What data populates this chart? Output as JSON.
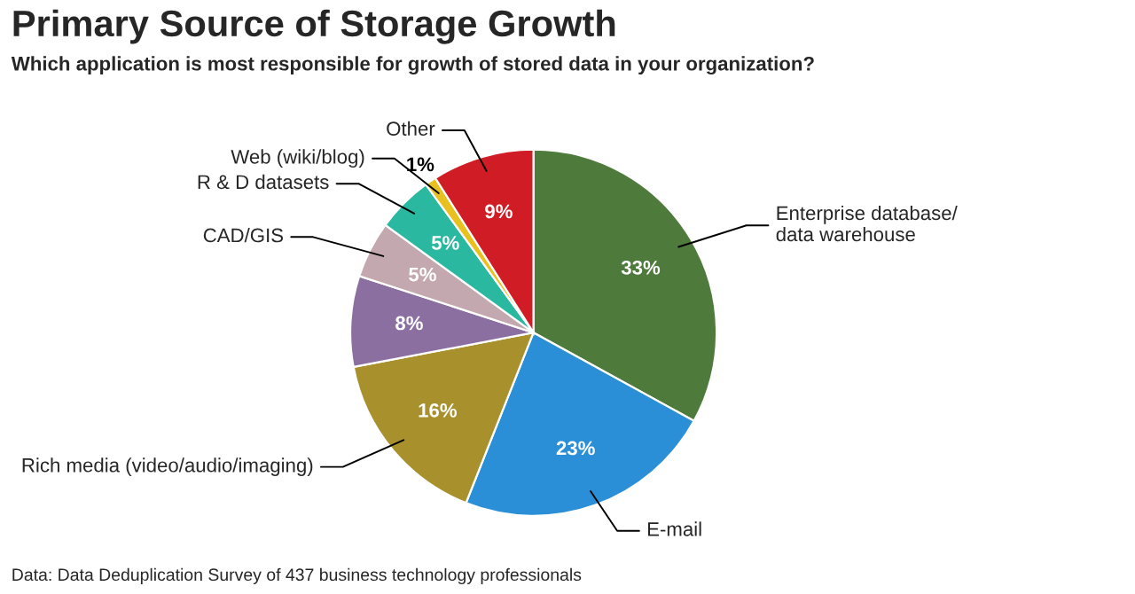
{
  "chart_data": {
    "type": "pie",
    "title": "Primary Source of Storage Growth",
    "subtitle": "Which application is most responsible for growth of stored data in your organization?",
    "categories": [
      "Enterprise database/\ndata warehouse",
      "E-mail",
      "Rich media (video/audio/imaging)",
      null,
      "CAD/GIS",
      "R & D datasets",
      "Web (wiki/blog)",
      "Other"
    ],
    "values": [
      33,
      23,
      16,
      8,
      5,
      5,
      1,
      9
    ],
    "value_labels": [
      "33%",
      "23%",
      "16%",
      "8%",
      "5%",
      "5%",
      "1%",
      "9%"
    ],
    "colors": [
      "#4e7a3c",
      "#2a8fd6",
      "#a8902c",
      "#8a6fa0",
      "#c4a8b0",
      "#2ab8a0",
      "#e8c020",
      "#d01c24"
    ],
    "annotations": [
      "Data: Data Deduplication Survey of 437 business technology professionals"
    ],
    "legend": false
  }
}
